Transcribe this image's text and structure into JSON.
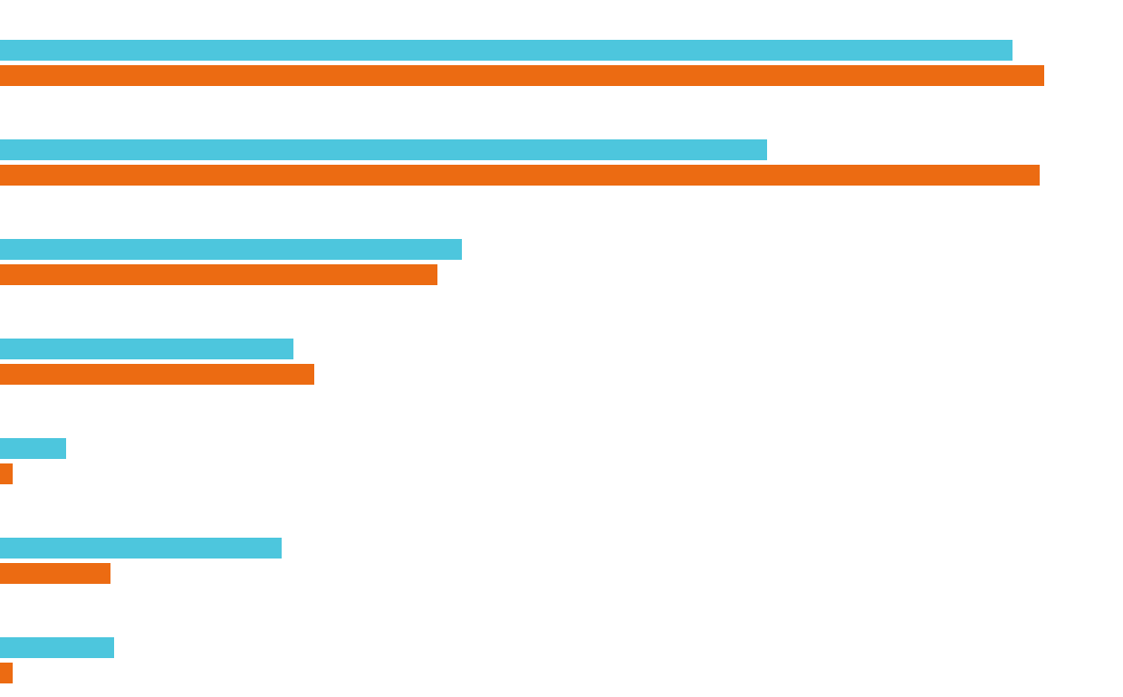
{
  "chart_data": {
    "type": "barh",
    "categories": [
      null,
      null,
      null,
      null,
      null,
      null,
      null
    ],
    "series": [
      {
        "color": "#4dc6dd",
        "values": [
          1118,
          847,
          510,
          324,
          73,
          311,
          126
        ]
      },
      {
        "color": "#ec6b12",
        "values": [
          1153,
          1148,
          483,
          347,
          14,
          122,
          14
        ]
      }
    ],
    "xlim": [
      0,
      1240
    ]
  }
}
